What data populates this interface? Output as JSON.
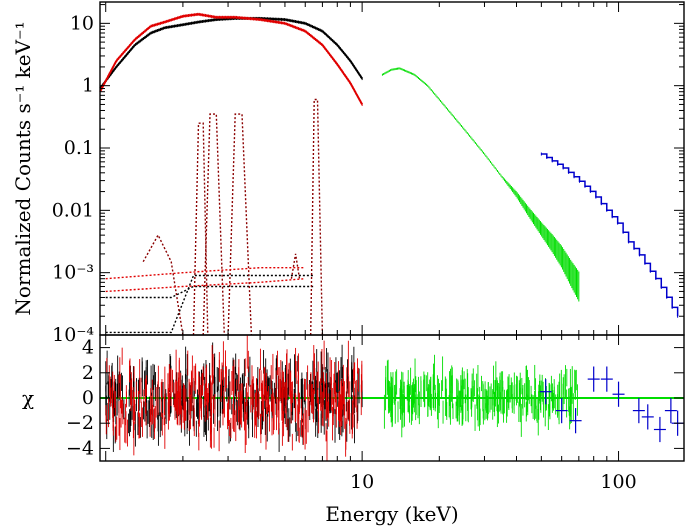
{
  "chart_data": [
    {
      "panel": "spectrum",
      "type": "scatter",
      "xscale": "log",
      "yscale": "log",
      "xlim": [
        0.95,
        180
      ],
      "ylim": [
        0.0001,
        22
      ],
      "ylabel": "Normalized Counts s⁻¹ keV⁻¹",
      "yticks": [
        {
          "value": 10,
          "label": "10"
        },
        {
          "value": 1,
          "label": "1"
        },
        {
          "value": 0.1,
          "label": "0.1"
        },
        {
          "value": 0.01,
          "label": "0.01"
        },
        {
          "value": 0.001,
          "label": "10⁻³"
        },
        {
          "value": 0.0001,
          "label": "10⁻⁴"
        }
      ],
      "series": [
        {
          "color": "#000000",
          "style": "data+model",
          "x": [
            0.95,
            1.1,
            1.3,
            1.5,
            1.7,
            2.0,
            2.3,
            2.7,
            3.2,
            4.0,
            5.0,
            6.0,
            7.0,
            8.0,
            9.0,
            10.0
          ],
          "y": [
            0.9,
            2.0,
            4.5,
            7.0,
            8.5,
            9.5,
            10.5,
            11.5,
            12.0,
            12.0,
            11.5,
            10.0,
            7.5,
            4.5,
            2.5,
            1.3
          ]
        },
        {
          "color": "#e00000",
          "style": "data+model",
          "x": [
            0.95,
            1.1,
            1.3,
            1.5,
            1.7,
            2.0,
            2.3,
            2.7,
            3.2,
            4.0,
            5.0,
            6.0,
            7.0,
            8.0,
            9.0,
            10.0
          ],
          "y": [
            0.8,
            2.5,
            5.5,
            9.0,
            10.5,
            13.0,
            14.0,
            12.5,
            12.5,
            11.5,
            10.0,
            7.5,
            4.5,
            2.2,
            1.1,
            0.5
          ]
        },
        {
          "color": "#00dd00",
          "style": "data",
          "x": [
            12,
            13,
            14,
            16,
            18,
            20,
            25,
            30,
            35,
            40,
            45,
            50,
            55,
            60,
            65,
            70
          ],
          "y": [
            1.5,
            1.8,
            1.9,
            1.5,
            1.0,
            0.6,
            0.2,
            0.08,
            0.035,
            0.018,
            0.009,
            0.005,
            0.003,
            0.0018,
            0.001,
            0.0006
          ]
        },
        {
          "color": "#0000cc",
          "style": "data+model",
          "x": [
            50,
            60,
            70,
            80,
            90,
            100,
            110,
            120,
            130,
            140,
            150,
            160,
            170
          ],
          "y": [
            0.08,
            0.05,
            0.03,
            0.018,
            0.01,
            0.006,
            0.003,
            0.002,
            0.0012,
            0.0008,
            0.0005,
            0.0003,
            0.0002
          ]
        }
      ],
      "components": [
        {
          "color": "#000000",
          "x": [
            1.0,
            1.4,
            1.8,
            2.2,
            3.0,
            4.0,
            5.0,
            6.0,
            6.5
          ],
          "y": [
            0.0004,
            0.0004,
            0.0004,
            0.0006,
            0.0006,
            0.0006,
            0.0006,
            0.0006,
            0.0006
          ]
        },
        {
          "color": "#000000",
          "x": [
            1.0,
            1.4,
            1.8,
            2.2,
            3.0,
            4.0,
            5.0,
            6.0,
            6.5
          ],
          "y": [
            0.00011,
            0.00011,
            0.00011,
            0.0009,
            0.0009,
            0.0009,
            0.0009,
            0.0009,
            0.0009
          ]
        },
        {
          "color": "#8b0000",
          "x": [
            1.4,
            1.6,
            1.8,
            2.0
          ],
          "y": [
            0.0015,
            0.004,
            0.0015,
            0.0001
          ]
        },
        {
          "color": "#8b0000",
          "x": [
            2.2,
            2.3,
            2.4,
            2.5
          ],
          "y": [
            0.0001,
            0.25,
            0.25,
            0.0001
          ]
        },
        {
          "color": "#8b0000",
          "x": [
            2.4,
            2.55,
            2.7,
            2.9
          ],
          "y": [
            0.0001,
            0.35,
            0.35,
            0.0001
          ]
        },
        {
          "color": "#8b0000",
          "x": [
            3.0,
            3.2,
            3.4,
            3.7
          ],
          "y": [
            0.0001,
            0.35,
            0.35,
            0.0001
          ]
        },
        {
          "color": "#8b0000",
          "x": [
            5.3,
            5.5,
            5.7
          ],
          "y": [
            0.0008,
            0.002,
            0.0008
          ]
        },
        {
          "color": "#8b0000",
          "x": [
            6.3,
            6.5,
            6.7,
            7.0
          ],
          "y": [
            0.0001,
            0.6,
            0.6,
            0.0001
          ]
        },
        {
          "color": "#e00000",
          "x": [
            1.0,
            2.0,
            4.0,
            6.0
          ],
          "y": [
            0.0008,
            0.001,
            0.0012,
            0.0012
          ]
        },
        {
          "color": "#e00000",
          "x": [
            1.0,
            2.0,
            4.0,
            6.0
          ],
          "y": [
            0.0005,
            0.0006,
            0.0007,
            0.0008
          ]
        }
      ]
    },
    {
      "panel": "residuals",
      "type": "scatter",
      "xscale": "log",
      "xlim": [
        0.95,
        180
      ],
      "ylim": [
        -5,
        5
      ],
      "xlabel": "Energy (keV)",
      "ylabel": "χ",
      "xticks": [
        {
          "value": 10,
          "label": "10"
        },
        {
          "value": 100,
          "label": "100"
        }
      ],
      "yticks": [
        {
          "value": 4,
          "label": "4"
        },
        {
          "value": 2,
          "label": "2"
        },
        {
          "value": 0,
          "label": "0"
        },
        {
          "value": -2,
          "label": "−2"
        },
        {
          "value": -4,
          "label": "−4"
        }
      ],
      "baseline": {
        "value": 0,
        "color": "#00dd00"
      },
      "series": [
        {
          "color": "#000000",
          "x_range": [
            1.0,
            10.0
          ],
          "spread": 2.5
        },
        {
          "color": "#e00000",
          "x_range": [
            1.0,
            10.0
          ],
          "spread": 3.0
        },
        {
          "color": "#00dd00",
          "x_range": [
            12.0,
            70.0
          ],
          "spread": 1.5
        },
        {
          "color": "#0000cc",
          "x": [
            52,
            60,
            68,
            80,
            90,
            100,
            120,
            130,
            145,
            160,
            170
          ],
          "y": [
            0.5,
            -1.0,
            -1.8,
            1.5,
            1.5,
            0.3,
            -1.0,
            -1.5,
            -2.5,
            -1.0,
            -2.0
          ]
        }
      ]
    }
  ]
}
